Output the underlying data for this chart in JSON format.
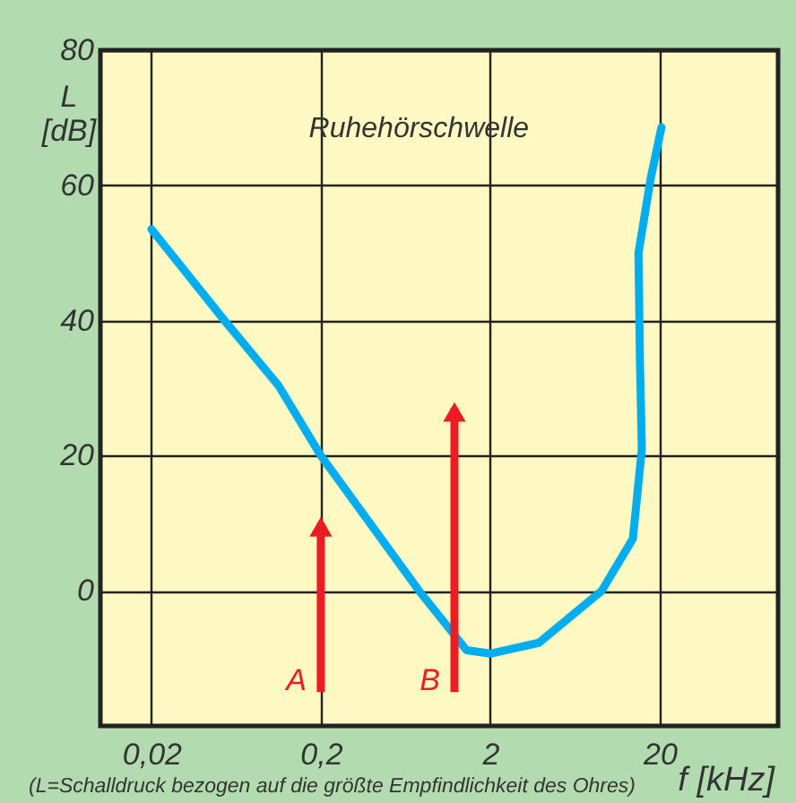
{
  "chart_data": {
    "type": "line",
    "xlabel": "f [kHz]",
    "ylabel": "L [dB]",
    "log": "x",
    "xlim": [
      0.01,
      100
    ],
    "ylim": [
      -20,
      80
    ],
    "xticks": [
      {
        "value": 0.02,
        "label": "0,02"
      },
      {
        "value": 0.2,
        "label": "0,2"
      },
      2,
      20
    ],
    "yticks": [
      0,
      20,
      40,
      60,
      80
    ],
    "grid": true,
    "legend": false,
    "series": [
      {
        "name": "Ruhehörschwelle",
        "color": "#00aeef",
        "x": [
          0.02,
          0.054,
          0.113,
          0.2,
          0.38,
          0.76,
          1.45,
          2,
          3.87,
          9.1,
          13.9,
          15.7,
          15.3,
          15,
          17.7,
          20.5
        ],
        "values": [
          53.5,
          40,
          30.3,
          20,
          10.4,
          0,
          -8.8,
          -9.3,
          -7.7,
          0,
          7.7,
          21,
          34,
          50,
          61,
          68.6
        ]
      }
    ],
    "annotations": [
      {
        "text": "A",
        "x": 0.2,
        "y": 10
      },
      {
        "text": "B",
        "x": 1.23,
        "y": 27
      },
      "(L=Schalldruck bezogen auf die größte Empfindlichkeit des Ohres)"
    ]
  }
}
